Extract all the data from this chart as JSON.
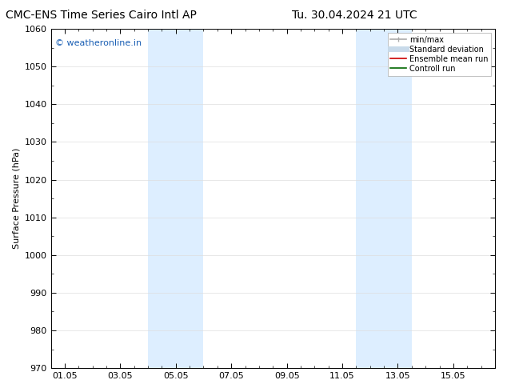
{
  "title_left": "CMC-ENS Time Series Cairo Intl AP",
  "title_right": "Tu. 30.04.2024 21 UTC",
  "ylabel": "Surface Pressure (hPa)",
  "ylim": [
    970,
    1060
  ],
  "yticks": [
    970,
    980,
    990,
    1000,
    1010,
    1020,
    1030,
    1040,
    1050,
    1060
  ],
  "xtick_labels": [
    "01.05",
    "03.05",
    "05.05",
    "07.05",
    "09.05",
    "11.05",
    "13.05",
    "15.05"
  ],
  "xtick_positions": [
    0,
    2,
    4,
    6,
    8,
    10,
    12,
    14
  ],
  "xlim": [
    -0.5,
    15.5
  ],
  "shaded_bands": [
    {
      "x_start": 3.0,
      "x_end": 5.0,
      "color": "#ddeeff"
    },
    {
      "x_start": 10.5,
      "x_end": 12.5,
      "color": "#ddeeff"
    }
  ],
  "watermark_text": "© weatheronline.in",
  "watermark_color": "#1a5fb4",
  "legend_items": [
    {
      "label": "min/max",
      "color": "#aaaaaa",
      "lw": 1.2,
      "style": "line_with_cap"
    },
    {
      "label": "Standard deviation",
      "color": "#c8daea",
      "lw": 5,
      "style": "line"
    },
    {
      "label": "Ensemble mean run",
      "color": "#cc0000",
      "lw": 1.2,
      "style": "line"
    },
    {
      "label": "Controll run",
      "color": "#006600",
      "lw": 1.2,
      "style": "line"
    }
  ],
  "bg_color": "#ffffff",
  "plot_bg_color": "#ffffff",
  "grid_color": "#dddddd",
  "title_fontsize": 10,
  "tick_fontsize": 8,
  "ylabel_fontsize": 8,
  "legend_fontsize": 7,
  "watermark_fontsize": 8
}
